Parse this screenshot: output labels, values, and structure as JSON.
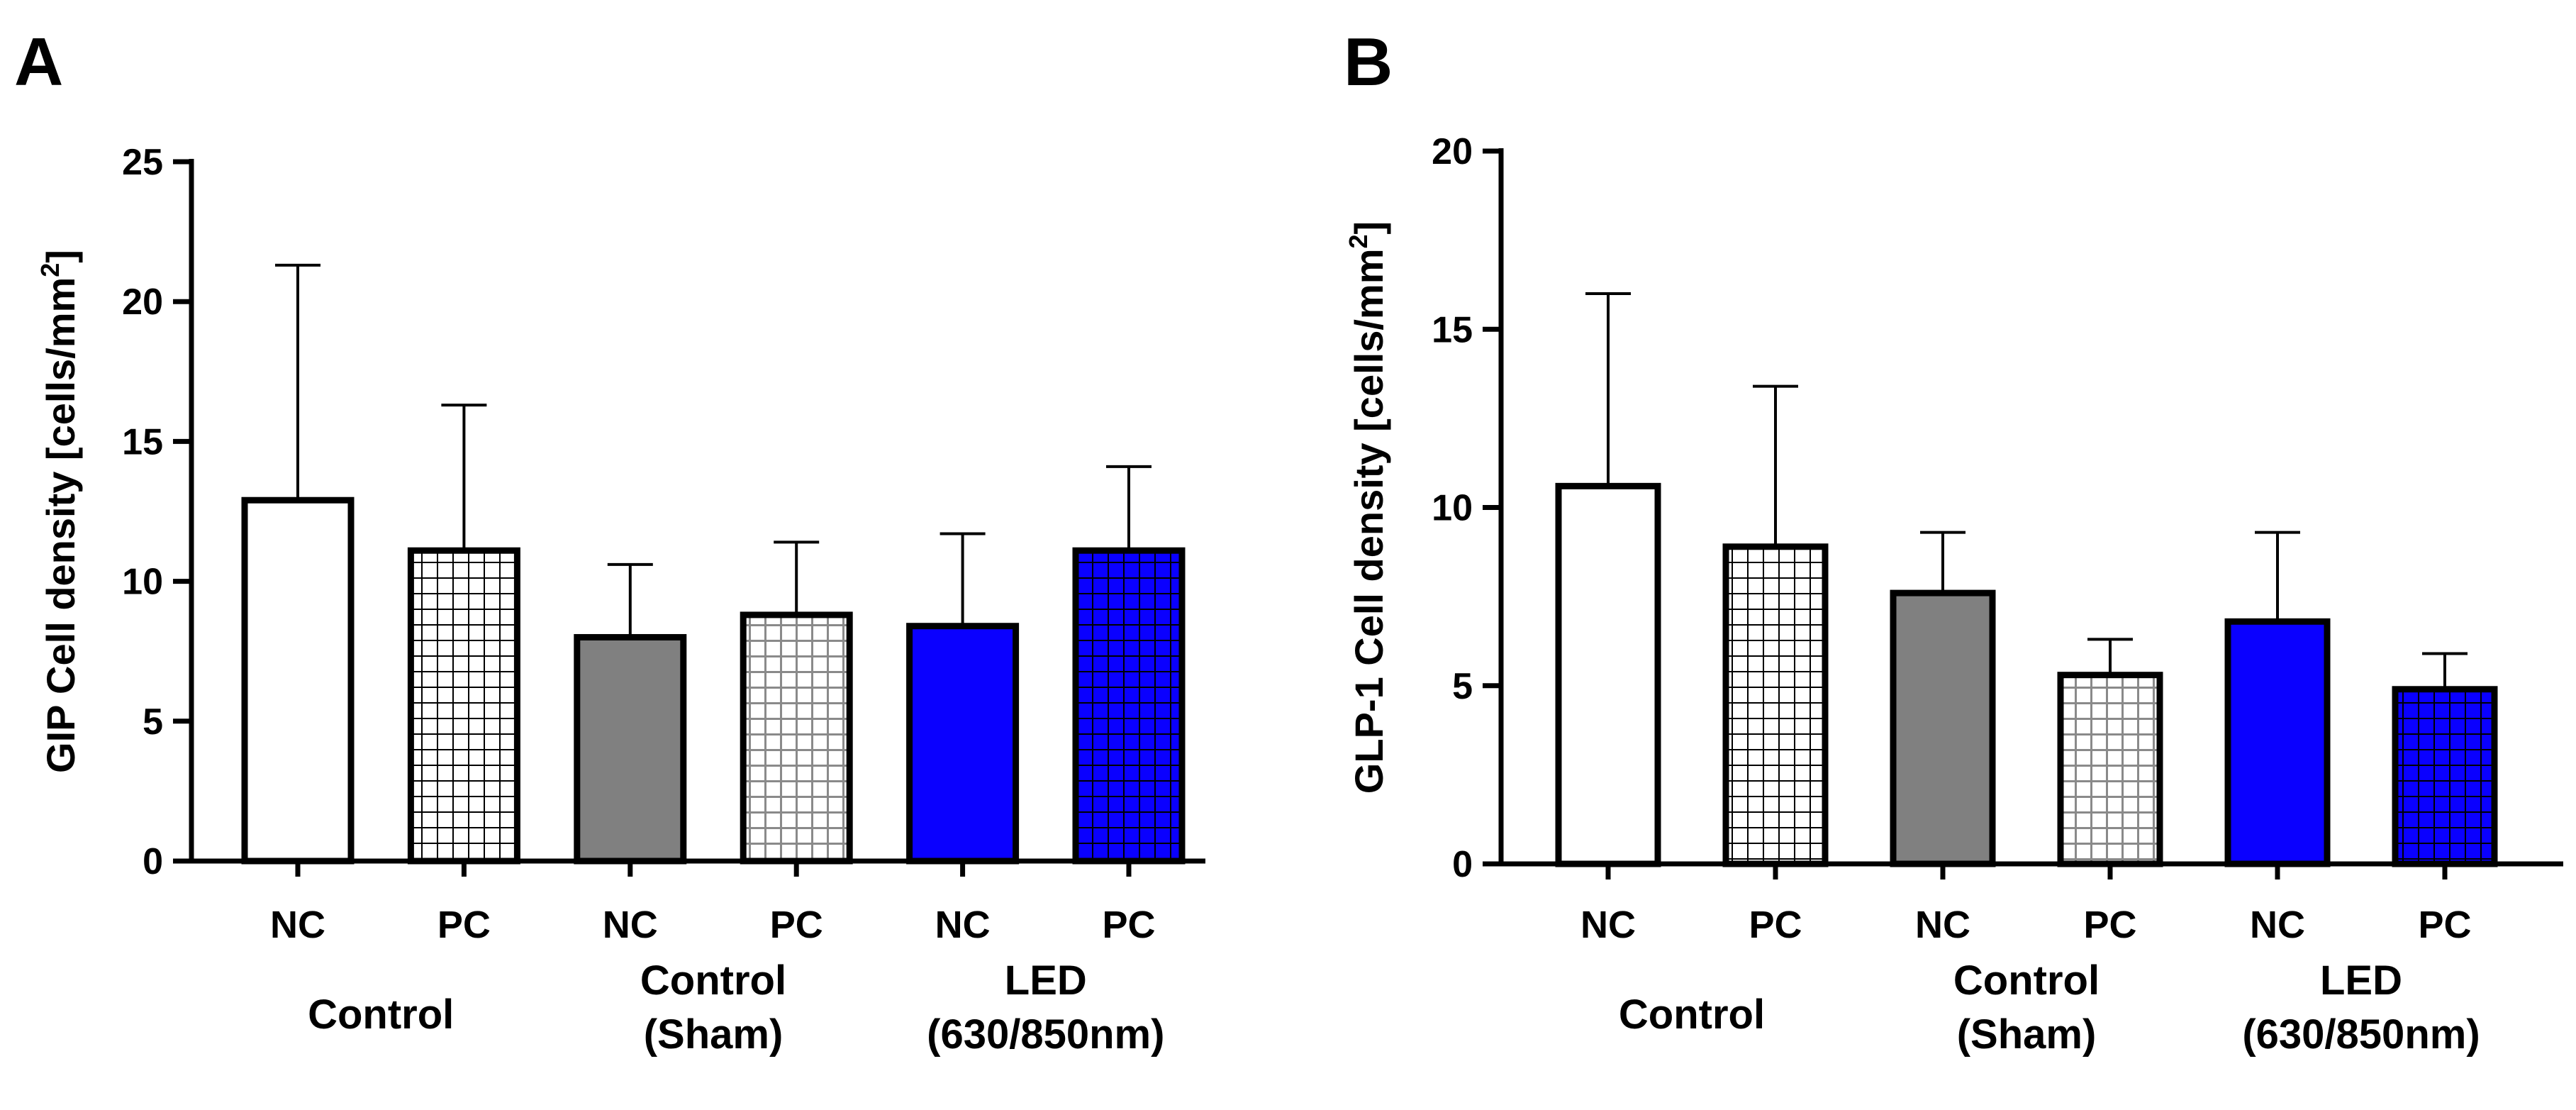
{
  "chart_data": [
    {
      "type": "bar",
      "panel": "A",
      "ylabel": "GIP Cell density [cells/mm",
      "ylabel_sup": "2",
      "ylabel_tail": "]",
      "ylim": [
        0,
        25
      ],
      "yticks": [
        0,
        5,
        10,
        15,
        20,
        25
      ],
      "categories": [
        "NC",
        "PC",
        "NC",
        "PC",
        "NC",
        "PC"
      ],
      "values": [
        12.9,
        11.1,
        8.0,
        8.8,
        8.4,
        11.1
      ],
      "error_upper": [
        21.3,
        16.3,
        10.6,
        11.4,
        11.7,
        14.1
      ],
      "fills": [
        "white",
        "grid-white",
        "#808080",
        "grid-gray",
        "#0a00ff",
        "grid-blue"
      ],
      "groups": [
        {
          "lines": [
            "Control"
          ]
        },
        {
          "lines": [
            "Control",
            "(Sham)"
          ]
        },
        {
          "lines": [
            "LED",
            "(630/850nm)"
          ]
        }
      ]
    },
    {
      "type": "bar",
      "panel": "B",
      "ylabel": "GLP-1 Cell density [cells/mm",
      "ylabel_sup": "2",
      "ylabel_tail": "]",
      "ylim": [
        0,
        20
      ],
      "yticks": [
        0,
        5,
        10,
        15,
        20
      ],
      "categories": [
        "NC",
        "PC",
        "NC",
        "PC",
        "NC",
        "PC"
      ],
      "values": [
        10.6,
        8.9,
        7.6,
        5.3,
        6.8,
        4.9
      ],
      "error_upper": [
        16.0,
        13.4,
        9.3,
        6.3,
        9.3,
        5.9
      ],
      "fills": [
        "white",
        "grid-white",
        "#808080",
        "grid-gray",
        "#0a00ff",
        "grid-blue"
      ],
      "groups": [
        {
          "lines": [
            "Control"
          ]
        },
        {
          "lines": [
            "Control",
            "(Sham)"
          ]
        },
        {
          "lines": [
            "LED",
            "(630/850nm)"
          ]
        }
      ]
    }
  ]
}
